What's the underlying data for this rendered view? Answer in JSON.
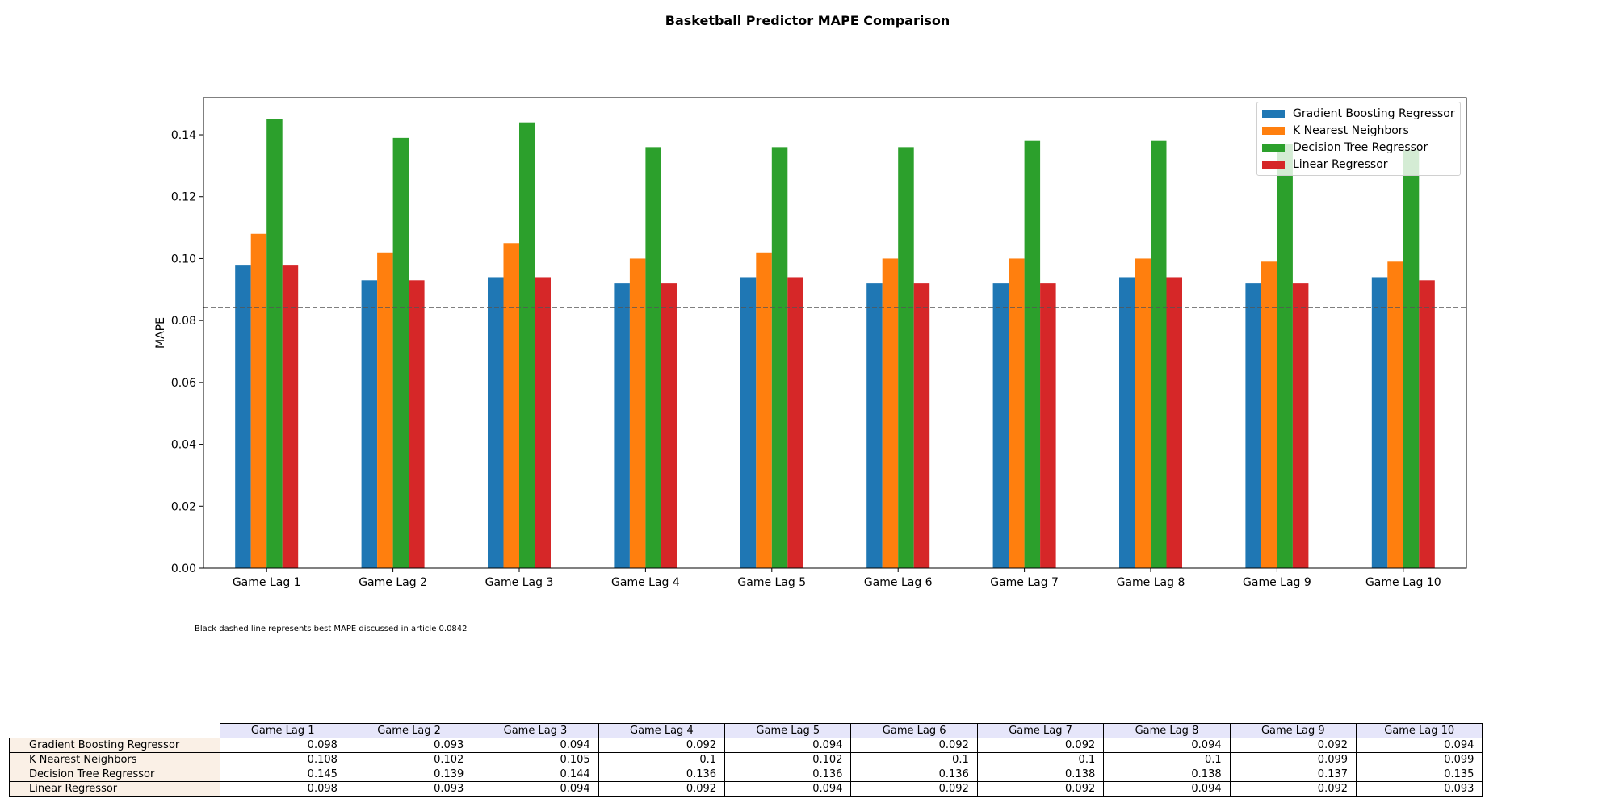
{
  "chart_data": {
    "type": "bar",
    "title": "Basketball Predictor MAPE Comparison",
    "xlabel": "",
    "ylabel": "MAPE",
    "ylim": [
      0,
      0.152
    ],
    "yticks": [
      "0.00",
      "0.02",
      "0.04",
      "0.06",
      "0.08",
      "0.10",
      "0.12",
      "0.14"
    ],
    "categories": [
      "Game Lag 1",
      "Game Lag 2",
      "Game Lag 3",
      "Game Lag 4",
      "Game Lag 5",
      "Game Lag 6",
      "Game Lag 7",
      "Game Lag 8",
      "Game Lag 9",
      "Game Lag 10"
    ],
    "series": [
      {
        "name": "Gradient Boosting Regressor",
        "color": "#1f77b4",
        "values": [
          0.098,
          0.093,
          0.094,
          0.092,
          0.094,
          0.092,
          0.092,
          0.094,
          0.092,
          0.094
        ]
      },
      {
        "name": "K Nearest Neighbors",
        "color": "#ff7f0e",
        "values": [
          0.108,
          0.102,
          0.105,
          0.1,
          0.102,
          0.1,
          0.1,
          0.1,
          0.099,
          0.099
        ]
      },
      {
        "name": "Decision Tree Regressor",
        "color": "#2ca02c",
        "values": [
          0.145,
          0.139,
          0.144,
          0.136,
          0.136,
          0.136,
          0.138,
          0.138,
          0.137,
          0.135
        ]
      },
      {
        "name": "Linear Regressor",
        "color": "#d62728",
        "values": [
          0.098,
          0.093,
          0.094,
          0.092,
          0.094,
          0.092,
          0.092,
          0.094,
          0.092,
          0.093
        ]
      }
    ],
    "reference_line": {
      "value": 0.0842,
      "style": "dashed",
      "color": "#555555"
    },
    "legend_placement": "top-right",
    "grid": false,
    "annotation": "Black dashed line represents best MAPE discussed in article 0.0842",
    "table": {
      "col_labels": [
        "Game Lag 1",
        "Game Lag 2",
        "Game Lag 3",
        "Game Lag 4",
        "Game Lag 5",
        "Game Lag 6",
        "Game Lag 7",
        "Game Lag 8",
        "Game Lag 9",
        "Game Lag 10"
      ],
      "rows": [
        {
          "label": "Gradient Boosting Regressor",
          "cells": [
            "0.098",
            "0.093",
            "0.094",
            "0.092",
            "0.094",
            "0.092",
            "0.092",
            "0.094",
            "0.092",
            "0.094"
          ]
        },
        {
          "label": "K Nearest Neighbors",
          "cells": [
            "0.108",
            "0.102",
            "0.105",
            "0.1",
            "0.102",
            "0.1",
            "0.1",
            "0.1",
            "0.099",
            "0.099"
          ]
        },
        {
          "label": "Decision Tree Regressor",
          "cells": [
            "0.145",
            "0.139",
            "0.144",
            "0.136",
            "0.136",
            "0.136",
            "0.138",
            "0.138",
            "0.137",
            "0.135"
          ]
        },
        {
          "label": "Linear Regressor",
          "cells": [
            "0.098",
            "0.093",
            "0.094",
            "0.092",
            "0.094",
            "0.092",
            "0.092",
            "0.094",
            "0.092",
            "0.093"
          ]
        }
      ]
    }
  }
}
